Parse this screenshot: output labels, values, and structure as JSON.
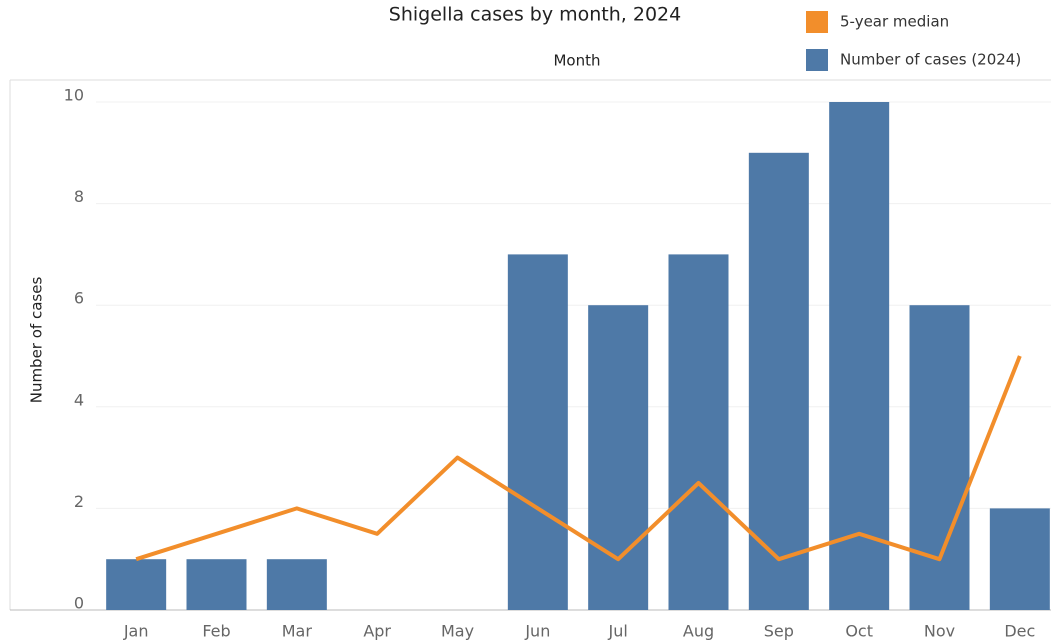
{
  "chart_data": {
    "type": "bar",
    "title": "Shigella cases by month, 2024",
    "x_label": "Month",
    "y_label": "Number of cases",
    "categories": [
      "Jan",
      "Feb",
      "Mar",
      "Apr",
      "May",
      "Jun",
      "Jul",
      "Aug",
      "Sep",
      "Oct",
      "Nov",
      "Dec"
    ],
    "series": [
      {
        "name": "5-year median",
        "type": "line",
        "color": "#f28e2b",
        "values": [
          1,
          1.5,
          2,
          1.5,
          3,
          2,
          1,
          2.5,
          1,
          1.5,
          1,
          5
        ]
      },
      {
        "name": "Number of cases (2024)",
        "type": "bar",
        "color": "#4e79a7",
        "values": [
          1,
          1,
          1,
          0,
          0,
          7,
          6,
          7,
          9,
          10,
          6,
          2
        ]
      }
    ],
    "ylim": [
      0,
      10
    ],
    "yticks": [
      0,
      2,
      4,
      6,
      8,
      10
    ],
    "grid": true,
    "legend": "top-right"
  }
}
